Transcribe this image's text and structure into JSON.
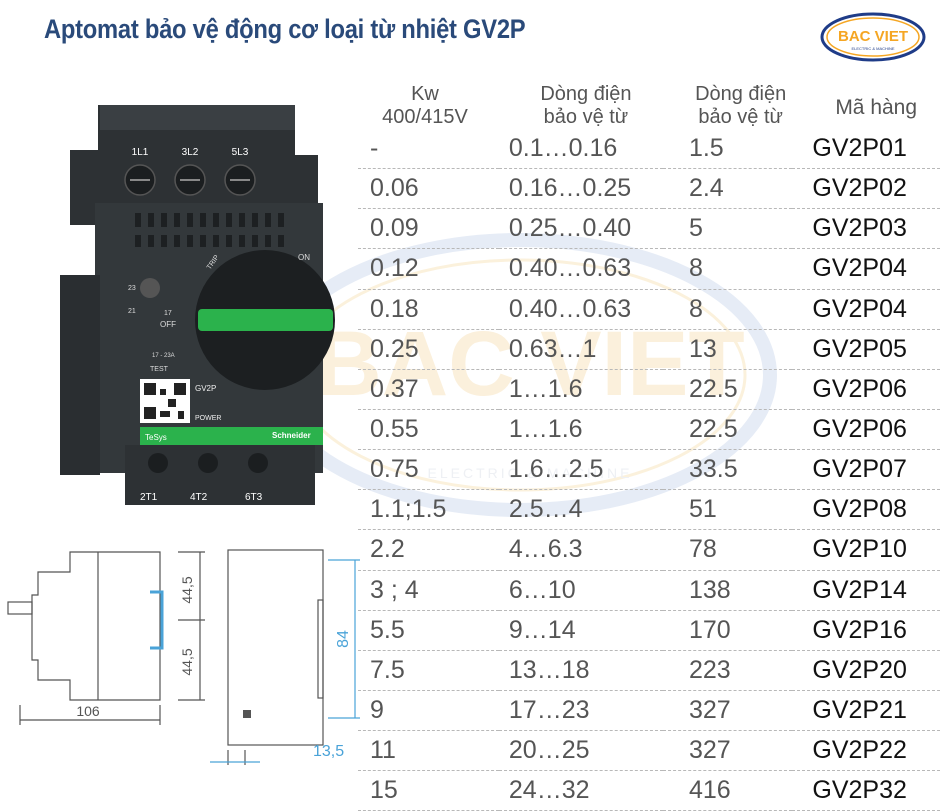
{
  "title": "Aptomat bảo vệ động cơ loại từ nhiệt GV2P",
  "logo": {
    "text": "BAC VIET",
    "sub": "ELECTRIC & MACHINE",
    "color": "#f5a623",
    "ring": "#1f3c88"
  },
  "watermark": {
    "text": "BAC VIET",
    "sub": "ELECTRIC & MACHINE"
  },
  "device": {
    "terminals_top": [
      "1L1",
      "3L2",
      "5L3"
    ],
    "terminals_bottom": [
      "2T1",
      "4T2",
      "6T3"
    ],
    "dial_values": [
      "23",
      "21",
      "17"
    ],
    "labels": {
      "off": "OFF",
      "on": "ON",
      "trip": "TRIP",
      "test": "TEST",
      "model": "GV2P",
      "power": "POWER",
      "range": "17 - 23A",
      "brand": "Schneider",
      "brand_sub": "Electric",
      "series": "TeSys"
    },
    "colors": {
      "body": "#2d3134",
      "green": "#2bb24c"
    }
  },
  "drawing": {
    "width_label": "106",
    "upper_label": "44,5",
    "lower_label": "44,5",
    "height_label": "84",
    "offset_label": "13,5",
    "dim_color": "#4aa3d8"
  },
  "table": {
    "headers": [
      {
        "line1": "Kw",
        "line2": "400/415V"
      },
      {
        "line1": "Dòng điện",
        "line2": "bảo vệ từ"
      },
      {
        "line1": "Dòng điện",
        "line2": "bảo vệ từ"
      },
      {
        "line1": "",
        "line2": "Mã hàng"
      }
    ],
    "rows": [
      [
        "-",
        "0.1…0.16",
        "1.5",
        "GV2P01"
      ],
      [
        "0.06",
        "0.16…0.25",
        "2.4",
        "GV2P02"
      ],
      [
        "0.09",
        "0.25…0.40",
        "5",
        "GV2P03"
      ],
      [
        "0.12",
        "0.40…0.63",
        "8",
        "GV2P04"
      ],
      [
        "0.18",
        "0.40…0.63",
        "8",
        "GV2P04"
      ],
      [
        "0.25",
        "0.63…1",
        "13",
        "GV2P05"
      ],
      [
        "0.37",
        "1…1.6",
        "22.5",
        "GV2P06"
      ],
      [
        "0.55",
        "1…1.6",
        "22.5",
        "GV2P06"
      ],
      [
        "0.75",
        "1.6…2.5",
        "33.5",
        "GV2P07"
      ],
      [
        "1.1;1.5",
        "2.5…4",
        "51",
        "GV2P08"
      ],
      [
        "2.2",
        "4…6.3",
        "78",
        "GV2P10"
      ],
      [
        "3 ; 4",
        "6…10",
        "138",
        "GV2P14"
      ],
      [
        "5.5",
        "9…14",
        "170",
        "GV2P16"
      ],
      [
        "7.5",
        "13…18",
        "223",
        "GV2P20"
      ],
      [
        "9",
        "17…23",
        "327",
        "GV2P21"
      ],
      [
        "11",
        "20…25",
        "327",
        "GV2P22"
      ],
      [
        "15",
        "24…32",
        "416",
        "GV2P32"
      ]
    ]
  }
}
